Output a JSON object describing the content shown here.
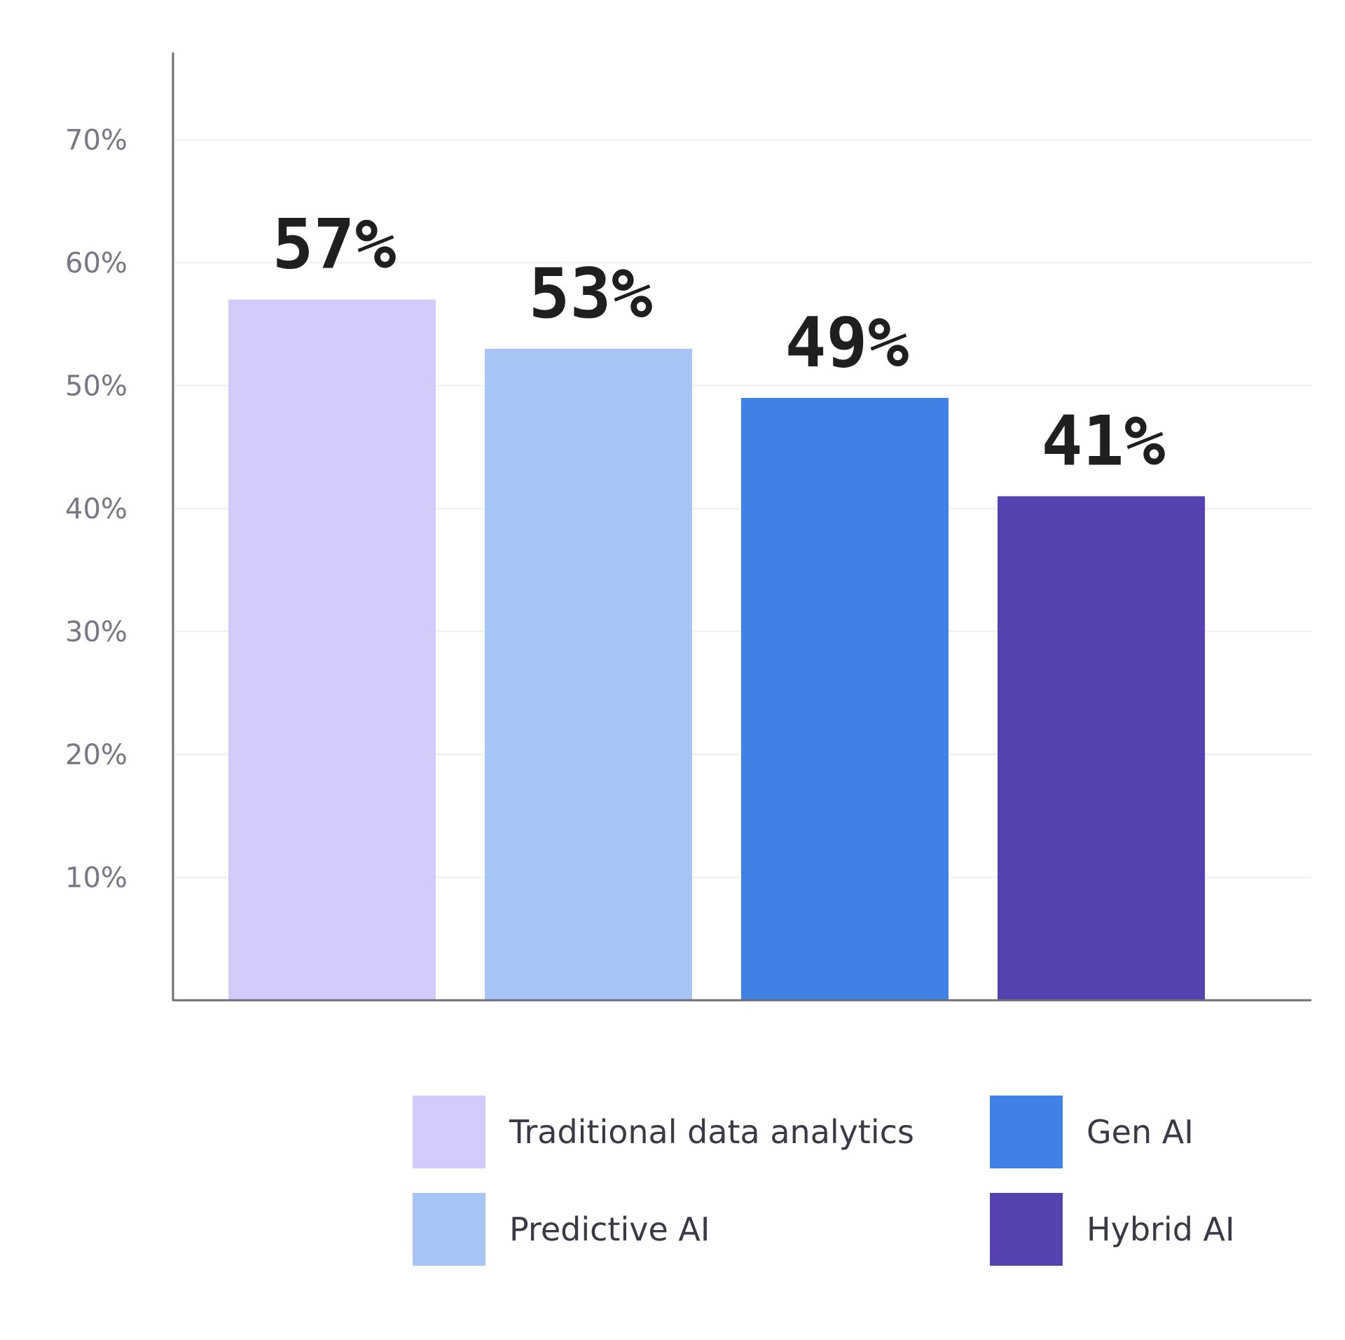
{
  "chart_data": {
    "type": "bar",
    "categories": [
      "Traditional data analytics",
      "Predictive AI",
      "Gen AI",
      "Hybrid AI"
    ],
    "values": [
      57,
      53,
      49,
      41
    ],
    "value_labels": [
      "57%",
      "53%",
      "49%",
      "41%"
    ],
    "colors": [
      "#d4cafc",
      "#a6c5f5",
      "#3f81e4",
      "#5641b0"
    ],
    "ylim": [
      0,
      77
    ],
    "yticks": [
      10,
      20,
      30,
      40,
      50,
      60,
      70
    ],
    "ytick_labels": [
      "10%",
      "20%",
      "30%",
      "40%",
      "50%",
      "60%",
      "70%"
    ],
    "grid": true,
    "legend_position": "bottom",
    "legend": [
      "Traditional data analytics",
      "Predictive AI",
      "Gen AI",
      "Hybrid AI"
    ],
    "title": "",
    "xlabel": "",
    "ylabel": ""
  }
}
